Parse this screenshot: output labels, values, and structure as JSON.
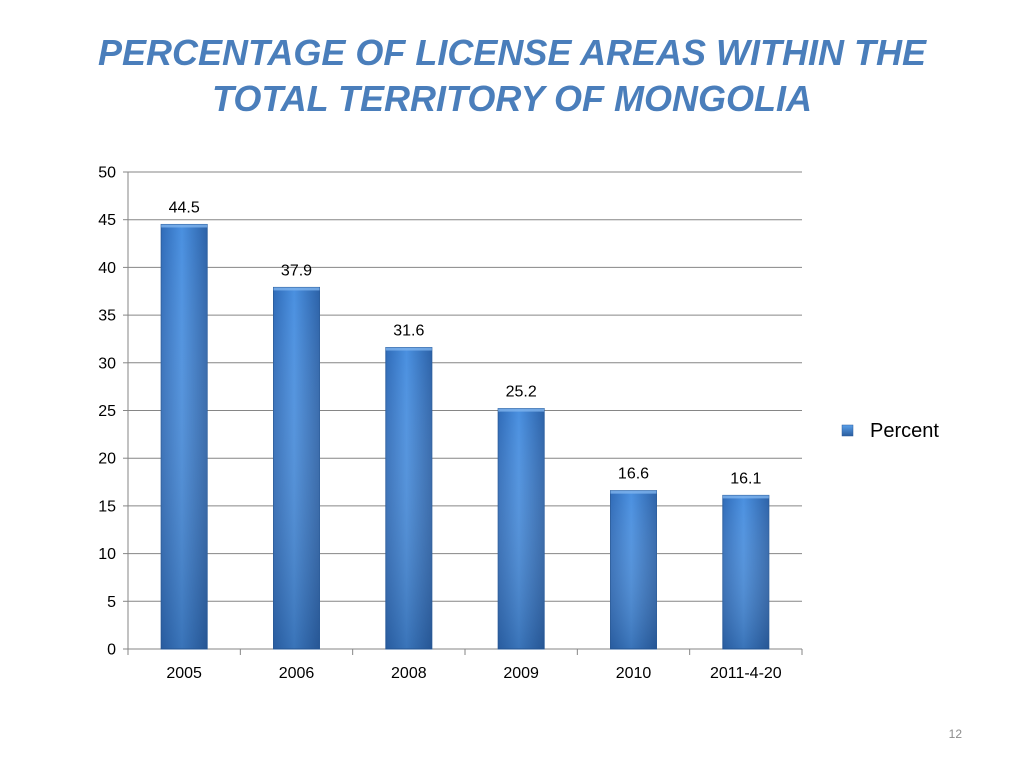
{
  "slide": {
    "title_lines": [
      "PERCENTAGE OF LICENSE AREAS WITHIN THE",
      "TOTAL TERRITORY OF MONGOLIA"
    ],
    "page_number": "12"
  },
  "colors": {
    "title": "#4a7ebb",
    "bar": "#3b7dd0",
    "bar_dark": "#2a5d9e",
    "grid": "#868686",
    "text": "#000000"
  },
  "chart_data": {
    "type": "bar",
    "categories": [
      "2005",
      "2006",
      "2008",
      "2009",
      "2010",
      "2011-4-20"
    ],
    "series": [
      {
        "name": "Percent",
        "values": [
          44.5,
          37.9,
          31.6,
          25.2,
          16.6,
          16.1
        ]
      }
    ],
    "data_labels": [
      "44.5",
      "37.9",
      "31.6",
      "25.2",
      "16.6",
      "16.1"
    ],
    "ylim": [
      0,
      50
    ],
    "yticks": [
      0,
      5,
      10,
      15,
      20,
      25,
      30,
      35,
      40,
      45,
      50
    ],
    "grid": true,
    "legend": "right"
  }
}
